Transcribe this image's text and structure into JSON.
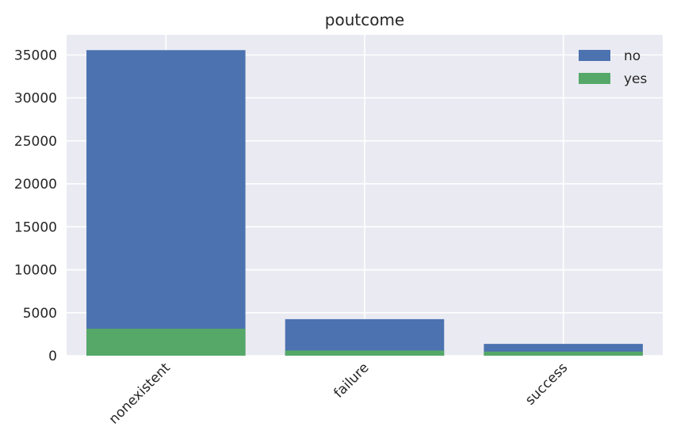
{
  "chart_data": {
    "type": "bar",
    "stacked": true,
    "title": "poutcome",
    "xlabel": "",
    "ylabel": "",
    "categories": [
      "nonexistent",
      "failure",
      "success"
    ],
    "series": [
      {
        "name": "no",
        "values": [
          35563,
          4250,
          1373
        ],
        "color": "#4c72b0"
      },
      {
        "name": "yes",
        "values": [
          3141,
          605,
          479
        ],
        "color": "#55a868"
      }
    ],
    "ylim": [
      0,
      37340
    ],
    "yticks": [
      0,
      5000,
      10000,
      15000,
      20000,
      25000,
      30000,
      35000
    ],
    "ytick_labels": [
      "0",
      "5000",
      "10000",
      "15000",
      "20000",
      "25000",
      "30000",
      "35000"
    ],
    "grid": true,
    "legend_position": "top-right",
    "x_tick_rotation_deg": 45,
    "colors": {
      "background": "#eaeaf2",
      "grid": "#ffffff",
      "text": "#262626"
    }
  }
}
